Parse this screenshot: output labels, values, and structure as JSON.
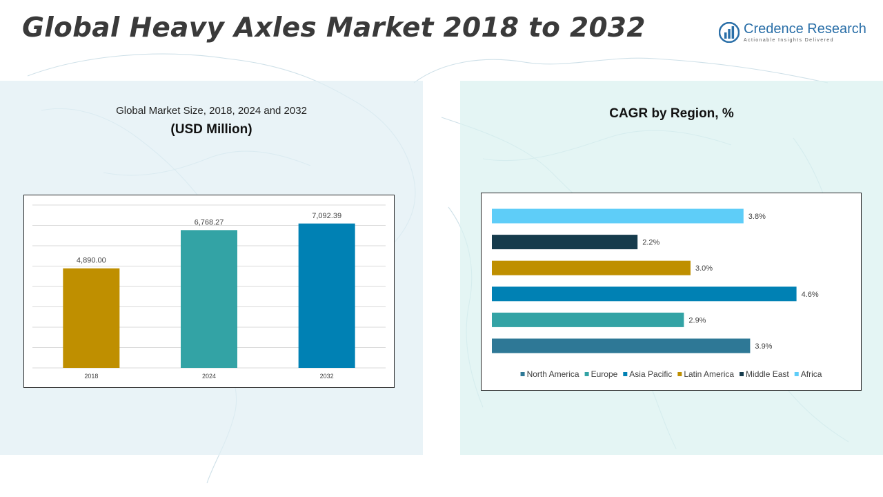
{
  "header": {
    "title": "Global Heavy Axles Market 2018 to 2032",
    "logo_name": "Credence Research",
    "logo_tagline": "Actionable Insights Delivered"
  },
  "colors": {
    "bar_2018": "#bf8f00",
    "bar_2024": "#33a3a5",
    "bar_2032": "#0081b4",
    "north_america": "#2e7896",
    "europe": "#33a3a5",
    "asia_pacific": "#0081b4",
    "latin_america": "#bf8f00",
    "middle_east": "#163b4c",
    "africa": "#5ecdf8"
  },
  "left_panel": {
    "subtitle": "Global Market Size, 2018, 2024 and 2032",
    "unit": "(USD Million)"
  },
  "right_panel": {
    "subtitle": "CAGR by Region, %"
  },
  "chart_data": [
    {
      "type": "bar",
      "categories": [
        "2018",
        "2024",
        "2032"
      ],
      "values": [
        4890.0,
        6768.27,
        7092.39
      ],
      "value_labels": [
        "4,890.00",
        "6,768.27",
        "7,092.39"
      ],
      "ylim": [
        0,
        8000
      ],
      "grid": true
    },
    {
      "type": "bar",
      "orientation": "horizontal",
      "categories": [
        "Africa",
        "Middle East",
        "Latin America",
        "Asia Pacific",
        "Europe",
        "North America"
      ],
      "values": [
        3.8,
        2.2,
        3.0,
        4.6,
        2.9,
        3.9
      ],
      "value_labels": [
        "3.8%",
        "2.2%",
        "3.0%",
        "4.6%",
        "2.9%",
        "3.9%"
      ],
      "legend": [
        "North America",
        "Europe",
        "Asia Pacific",
        "Latin America",
        "Middle East",
        "Africa"
      ],
      "legend_position": "bottom",
      "xlim": [
        0,
        5
      ],
      "grid": false
    }
  ]
}
